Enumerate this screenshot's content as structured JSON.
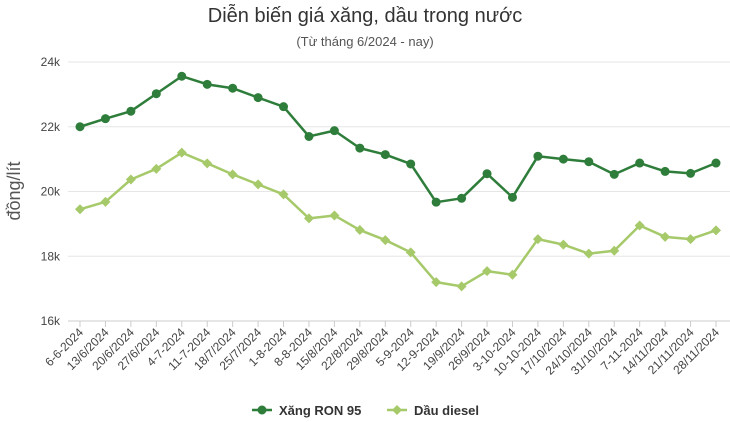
{
  "chart_data": {
    "type": "line",
    "title": "Diễn biến giá xăng, dầu trong nước",
    "subtitle": "(Từ tháng 6/2024 - nay)",
    "ylabel": "đồng/lít",
    "xlabel": "",
    "ylim": [
      16000,
      24000
    ],
    "yticks": [
      16000,
      18000,
      20000,
      22000,
      24000
    ],
    "ytick_labels": [
      "16k",
      "18k",
      "20k",
      "22k",
      "24k"
    ],
    "grid": true,
    "legend_position": "bottom",
    "categories": [
      "6-6-2024",
      "13/6/2024",
      "20/6/2024",
      "27/6/2024",
      "4-7-2024",
      "11-7-2024",
      "18/7/2024",
      "25/7/2024",
      "1-8-2024",
      "8-8-2024",
      "15/8/2024",
      "22/8/2024",
      "29/8/2024",
      "5-9-2024",
      "12-9-2024",
      "19/9/2024",
      "26/9/2024",
      "3-10-2024",
      "10-10-2024",
      "17/10/2024",
      "24/10/2024",
      "31/10/2024",
      "7-11-2024",
      "14/11/2024",
      "21/11/2024",
      "28/11/2024"
    ],
    "series": [
      {
        "name": "Xăng RON 95",
        "color": "#2e7d3a",
        "marker": "circle",
        "values": [
          22000,
          22250,
          22480,
          23020,
          23560,
          23310,
          23190,
          22900,
          22620,
          21700,
          21880,
          21340,
          21140,
          20850,
          19670,
          19790,
          20550,
          19820,
          21090,
          21000,
          20920,
          20530,
          20880,
          20620,
          20560,
          20880
        ]
      },
      {
        "name": "Dầu diesel",
        "color": "#a6c96a",
        "marker": "diamond",
        "values": [
          19450,
          19680,
          20370,
          20700,
          21200,
          20870,
          20530,
          20220,
          19910,
          19170,
          19260,
          18810,
          18500,
          18120,
          17200,
          17070,
          17540,
          17430,
          18530,
          18360,
          18080,
          18170,
          18950,
          18600,
          18530,
          18800
        ]
      }
    ]
  }
}
